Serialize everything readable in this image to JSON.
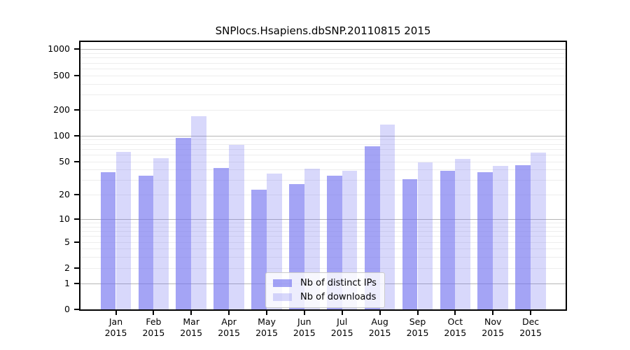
{
  "chart_data": {
    "type": "bar",
    "title": "SNPlocs.Hsapiens.dbSNP.20110815 2015",
    "scale": "log10(1+x)",
    "categories": [
      "Jan",
      "Feb",
      "Mar",
      "Apr",
      "May",
      "Jun",
      "Jul",
      "Aug",
      "Sep",
      "Oct",
      "Nov",
      "Dec"
    ],
    "category_year": "2015",
    "series": [
      {
        "name": "Nb of distinct IPs",
        "color": "rgba(115,115,240,0.65)",
        "values": [
          37,
          34,
          94,
          42,
          23,
          27,
          34,
          75,
          31,
          39,
          37,
          45
        ]
      },
      {
        "name": "Nb of downloads",
        "color": "rgba(115,115,240,0.28)",
        "values": [
          65,
          55,
          168,
          78,
          36,
          41,
          39,
          135,
          49,
          54,
          44,
          64
        ]
      }
    ],
    "y_ticks": [
      0,
      1,
      2,
      5,
      10,
      20,
      50,
      100,
      200,
      500,
      1000
    ],
    "gridlines": {
      "major": [
        1,
        10,
        100,
        1000
      ],
      "minor": [
        2,
        3,
        4,
        5,
        6,
        7,
        8,
        9,
        20,
        30,
        40,
        50,
        60,
        70,
        80,
        90,
        200,
        300,
        400,
        500,
        600,
        700,
        800,
        900
      ]
    },
    "ylim": [
      0,
      1300
    ],
    "legend_position": "lower center",
    "colors": {
      "bar_base": "#7373f0",
      "major_grid": "#b5b5b5",
      "minor_grid": "#ededed",
      "axis": "#000000"
    }
  }
}
